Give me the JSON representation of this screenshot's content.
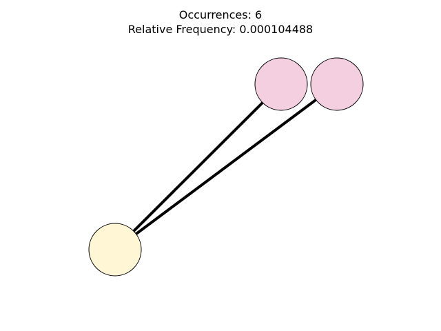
{
  "title": {
    "occurrences_line": "Occurrences: 6",
    "frequency_line": "Relative Frequency: 0.000104488"
  },
  "graph": {
    "nodes": [
      {
        "id": "n1",
        "color": "#f4cfe0"
      },
      {
        "id": "n2",
        "color": "#f4cfe0"
      },
      {
        "id": "n3",
        "color": "#fff6d6"
      }
    ],
    "edges": [
      {
        "from": "n3",
        "to": "n1"
      },
      {
        "from": "n3",
        "to": "n2"
      }
    ],
    "edge_color": "#000000",
    "node_outline_color": "#000000"
  }
}
